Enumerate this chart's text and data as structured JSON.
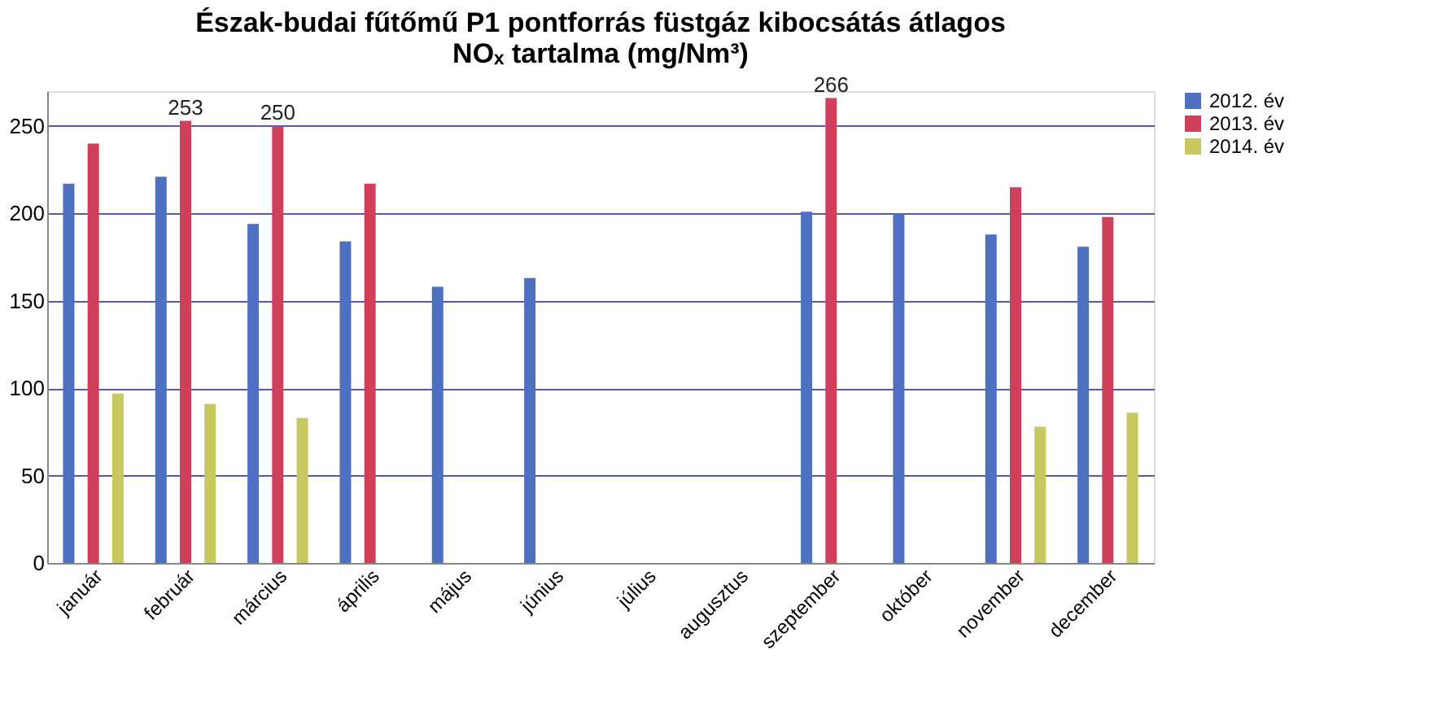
{
  "chart_data": {
    "type": "bar",
    "title": "Észak-budai fűtőmű P1 pontforrás füstgáz kibocsátás átlagos NOₓ tartalma (mg/Nm³)",
    "categories": [
      "január",
      "február",
      "március",
      "április",
      "május",
      "június",
      "július",
      "augusztus",
      "szeptember",
      "október",
      "november",
      "december"
    ],
    "series": [
      {
        "name": "2012. év",
        "color": "#4f6fc0",
        "values": [
          217,
          221,
          194,
          184,
          158,
          163,
          null,
          null,
          201,
          200,
          188,
          181
        ]
      },
      {
        "name": "2013. év",
        "color": "#d0405a",
        "values": [
          240,
          253,
          250,
          217,
          null,
          null,
          null,
          null,
          266,
          null,
          215,
          198
        ],
        "value_labels": [
          null,
          "253",
          "250",
          null,
          null,
          null,
          null,
          null,
          "266",
          null,
          null,
          null
        ]
      },
      {
        "name": "2014. év",
        "color": "#c8c860",
        "values": [
          97,
          91,
          83,
          null,
          null,
          null,
          null,
          null,
          null,
          null,
          78,
          86
        ]
      }
    ],
    "ylim": [
      0,
      270
    ],
    "yticks": [
      0,
      50,
      100,
      150,
      200,
      250
    ],
    "grid": "y",
    "legend": "right"
  }
}
